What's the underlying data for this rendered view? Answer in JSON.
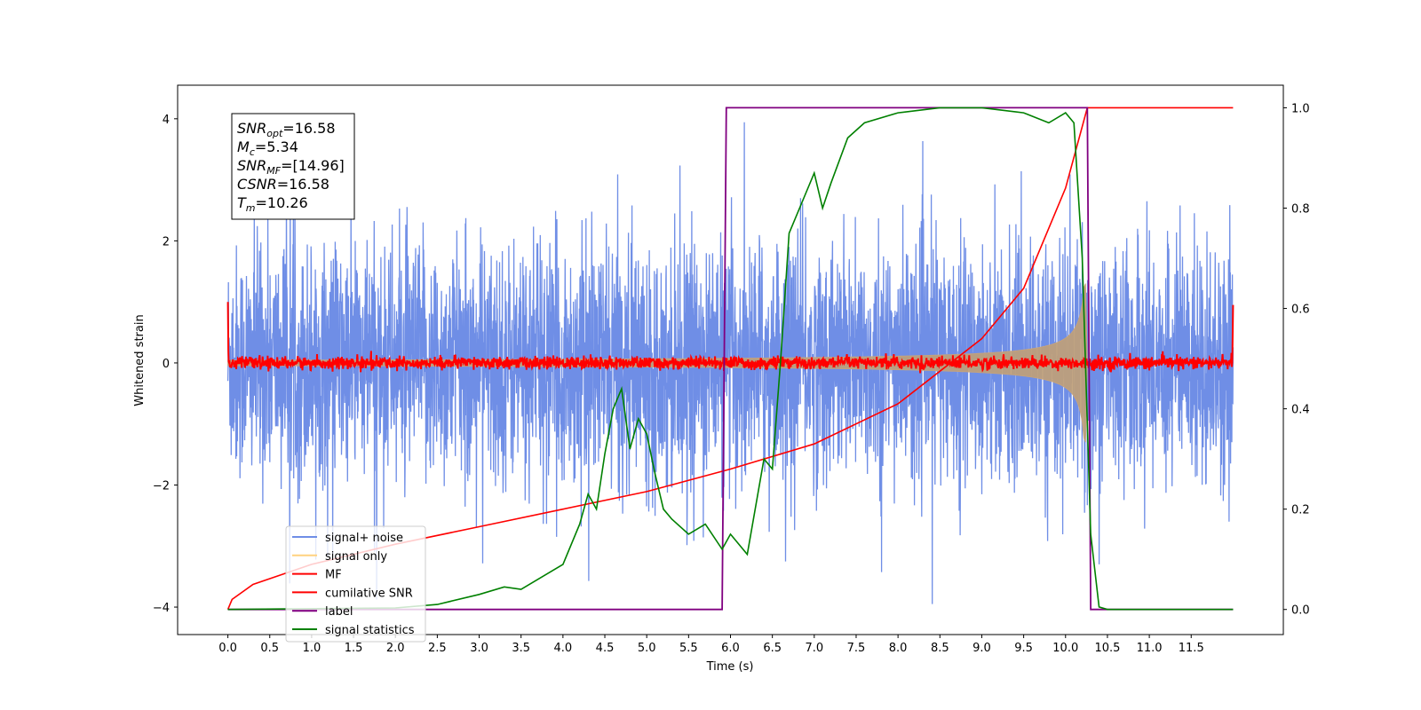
{
  "chart_data": {
    "type": "line",
    "xlabel": "Time (s)",
    "ylabel_left": "Whitened strain",
    "ylabel_right": "",
    "xlim": [
      -0.6,
      12.6
    ],
    "ylim_left": [
      -4.45,
      4.55
    ],
    "ylim_right": [
      -0.05,
      1.045
    ],
    "x_ticks": [
      0.0,
      0.5,
      1.0,
      1.5,
      2.0,
      2.5,
      3.0,
      3.5,
      4.0,
      4.5,
      5.0,
      5.5,
      6.0,
      6.5,
      7.0,
      7.5,
      8.0,
      8.5,
      9.0,
      9.5,
      10.0,
      10.5,
      11.0,
      11.5
    ],
    "x_tick_labels": [
      "0.0",
      "0.5",
      "1.0",
      "1.5",
      "2.0",
      "2.5",
      "3.0",
      "3.5",
      "4.0",
      "4.5",
      "5.0",
      "5.5",
      "6.0",
      "6.5",
      "7.0",
      "7.5",
      "8.0",
      "8.5",
      "9.0",
      "9.5",
      "10.0",
      "10.5",
      "11.0",
      "11.5"
    ],
    "y_left_ticks": [
      -4,
      -2,
      0,
      2,
      4
    ],
    "y_left_tick_labels": [
      "−4",
      "−2",
      "0",
      "2",
      "4"
    ],
    "y_right_ticks": [
      0.0,
      0.2,
      0.4,
      0.6,
      0.8,
      1.0
    ],
    "y_right_tick_labels": [
      "0.0",
      "0.2",
      "0.4",
      "0.6",
      "0.8",
      "1.0"
    ],
    "grid": false,
    "legend_position": "lower-left",
    "info_box": {
      "lines": [
        {
          "symbol": "SNR",
          "sub": "opt",
          "value": "=16.58"
        },
        {
          "symbol": "M",
          "sub": "c",
          "value": "=5.34"
        },
        {
          "symbol": "SNR",
          "sub": "MF",
          "value": "=[14.96]"
        },
        {
          "symbol": "CSNR",
          "sub": "",
          "value": "=16.58"
        },
        {
          "symbol": "T",
          "sub": "m",
          "value": "=10.26"
        }
      ]
    },
    "series": [
      {
        "name": "signal+ noise",
        "axis": "left",
        "color": "#6f8ee6",
        "kind": "noise",
        "envelope_std": 0.95,
        "x_range": [
          0.0,
          12.0
        ]
      },
      {
        "name": "signal only",
        "axis": "left",
        "color": "#c9a47a",
        "kind": "chirp",
        "merger_time": 10.26,
        "peak_amplitude": 1.3,
        "base_amplitude": 0.05
      },
      {
        "name": "MF",
        "axis": "left",
        "color": "#ff0000",
        "kind": "mf_noise",
        "level": 0.0,
        "jitter": 0.05,
        "start_value": 1.0,
        "end_value": 0.95
      },
      {
        "name": "cumilative SNR",
        "axis": "right",
        "color": "#ff0000",
        "x": [
          0.0,
          0.05,
          0.3,
          1.0,
          2.0,
          3.0,
          4.0,
          5.0,
          6.0,
          7.0,
          8.0,
          9.0,
          9.5,
          10.0,
          10.26,
          11.0,
          12.0
        ],
        "y": [
          0.0,
          0.02,
          0.05,
          0.09,
          0.13,
          0.165,
          0.2,
          0.235,
          0.28,
          0.33,
          0.41,
          0.54,
          0.64,
          0.84,
          1.0,
          1.0,
          1.0
        ]
      },
      {
        "name": "label",
        "axis": "right",
        "color": "#800080",
        "x": [
          0.0,
          5.9,
          5.95,
          10.26,
          10.3,
          12.0
        ],
        "y": [
          0.0,
          0.0,
          1.0,
          1.0,
          0.0,
          0.0
        ]
      },
      {
        "name": "signal statistics",
        "axis": "right",
        "color": "#008000",
        "x": [
          0.0,
          2.0,
          2.5,
          3.0,
          3.3,
          3.5,
          3.8,
          4.0,
          4.2,
          4.3,
          4.4,
          4.5,
          4.6,
          4.7,
          4.8,
          4.9,
          5.0,
          5.1,
          5.2,
          5.3,
          5.5,
          5.7,
          5.9,
          6.0,
          6.2,
          6.4,
          6.5,
          6.6,
          6.7,
          6.9,
          7.0,
          7.1,
          7.2,
          7.4,
          7.6,
          8.0,
          8.5,
          9.0,
          9.5,
          9.8,
          10.0,
          10.1,
          10.2,
          10.3,
          10.4,
          10.5,
          12.0
        ],
        "y": [
          0.0,
          0.003,
          0.01,
          0.03,
          0.045,
          0.04,
          0.07,
          0.09,
          0.17,
          0.23,
          0.2,
          0.31,
          0.4,
          0.44,
          0.32,
          0.38,
          0.35,
          0.27,
          0.2,
          0.18,
          0.15,
          0.17,
          0.12,
          0.15,
          0.11,
          0.3,
          0.28,
          0.5,
          0.75,
          0.83,
          0.87,
          0.8,
          0.85,
          0.94,
          0.97,
          0.99,
          1.0,
          1.0,
          0.99,
          0.97,
          0.99,
          0.97,
          0.7,
          0.15,
          0.005,
          0.0,
          0.0
        ]
      }
    ]
  }
}
